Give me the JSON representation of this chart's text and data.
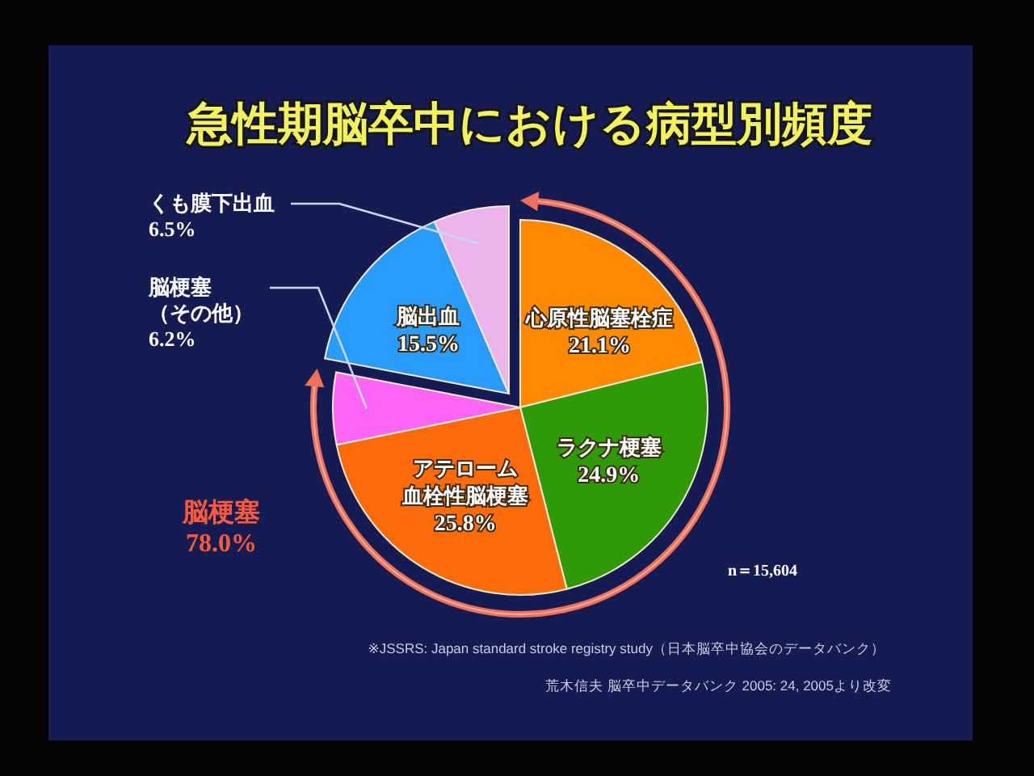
{
  "chart_data": {
    "type": "pie",
    "title": "急性期脳卒中における病型別頻度",
    "categories": [
      "心原性脳塞栓症",
      "ラクナ梗塞",
      "アテローム血栓性脳梗塞",
      "脳梗塞（その他）",
      "脳出血",
      "くも膜下出血"
    ],
    "values": [
      21.1,
      24.9,
      25.8,
      6.2,
      15.5,
      6.5
    ],
    "colors": [
      "#ff8a00",
      "#2f9a06",
      "#ff6a0a",
      "#ff66f2",
      "#2a9cff",
      "#ecb4ec"
    ],
    "value_labels": [
      "21.1%",
      "24.9%",
      "25.8%",
      "6.2%",
      "15.5%",
      "6.5%"
    ],
    "annotations": [
      "脳梗塞\n78.0%",
      "n＝15,604",
      "※JSSRS: Japan standard stroke registry study（日本脳卒中協会のデータバンク）",
      "荒木信夫 脳卒中データバンク 2005: 24, 2005より改変"
    ]
  }
}
